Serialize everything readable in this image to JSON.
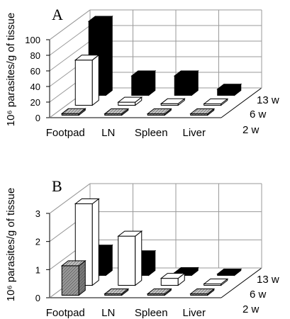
{
  "colors": {
    "week2": "#8f8f8f",
    "week6": "#ffffff",
    "week13": "#000000",
    "grid": "#9a9a9a",
    "stroke": "#000000"
  },
  "chart_data": [
    {
      "type": "bar",
      "panel": "A",
      "ylabel": "10⁶ parasites/g of tissue",
      "ylim": [
        0,
        100
      ],
      "yticks": [
        "0",
        "20",
        "40",
        "60",
        "80",
        "100"
      ],
      "categories": [
        "Footpad",
        "LN",
        "Spleen",
        "Liver"
      ],
      "series": [
        {
          "name": "2 w",
          "values": [
            2,
            1,
            1,
            1
          ]
        },
        {
          "name": "6 w",
          "values": [
            58,
            4,
            2,
            1
          ]
        },
        {
          "name": "13 w",
          "values": [
            95,
            25,
            25,
            8
          ]
        }
      ],
      "grid": true
    },
    {
      "type": "bar",
      "panel": "B",
      "ylabel": "10⁶ parasites/g of tissue",
      "ylim": [
        0,
        3
      ],
      "yticks": [
        "0",
        "1",
        "2",
        "3"
      ],
      "categories": [
        "Footpad",
        "LN",
        "Spleen",
        "Liver"
      ],
      "series": [
        {
          "name": "2 w",
          "values": [
            1.05,
            0.03,
            0.03,
            0.03
          ]
        },
        {
          "name": "6 w",
          "values": [
            2.9,
            1.75,
            0.25,
            0.05
          ]
        },
        {
          "name": "13 w",
          "values": [
            0.9,
            0.7,
            0.1,
            0.05
          ]
        }
      ],
      "grid": true
    }
  ]
}
